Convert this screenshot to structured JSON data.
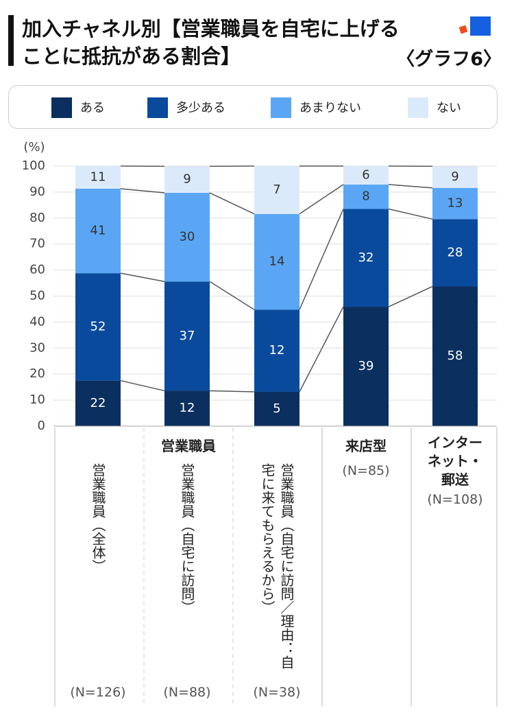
{
  "chart_data": {
    "type": "stacked_bar",
    "title": "加入チャネル別【営業職員を自宅に上げることに抵抗がある割合】",
    "subtitle": "〈グラフ6〉",
    "y_label": "(%)",
    "group_label": "営業職員",
    "categories": [
      "営業職員（全体）",
      "営業職員（自宅に訪問）",
      "営業職員（自宅に訪問／理由：自宅に来てもらえるから）",
      "来店型",
      "インターネット・郵送"
    ],
    "n_labels": [
      "(N=126)",
      "(N=88)",
      "(N=38)",
      "(N=85)",
      "(N=108)"
    ],
    "series": [
      {
        "name": "ある",
        "color": "#0b2f5e",
        "values": [
          17.5,
          13.6,
          13.2,
          45.9,
          53.7
        ],
        "counts": [
          22,
          12,
          5,
          39,
          58
        ]
      },
      {
        "name": "多少ある",
        "color": "#0a4a9c",
        "values": [
          41.3,
          42.0,
          31.6,
          37.6,
          25.9
        ],
        "counts": [
          52,
          37,
          12,
          32,
          28
        ]
      },
      {
        "name": "あまりない",
        "color": "#5aa6f5",
        "values": [
          32.5,
          34.1,
          36.8,
          9.4,
          12.0
        ],
        "counts": [
          41,
          30,
          14,
          8,
          13
        ]
      },
      {
        "name": "ない",
        "color": "#dbeafb",
        "values": [
          8.7,
          10.2,
          18.4,
          7.1,
          8.3
        ],
        "counts": [
          11,
          9,
          7,
          6,
          9
        ]
      }
    ],
    "ylim": [
      0,
      100
    ],
    "yticks": [
      0,
      10,
      20,
      30,
      40,
      50,
      60,
      70,
      80,
      90,
      100
    ],
    "grid": true,
    "legend": "top"
  }
}
